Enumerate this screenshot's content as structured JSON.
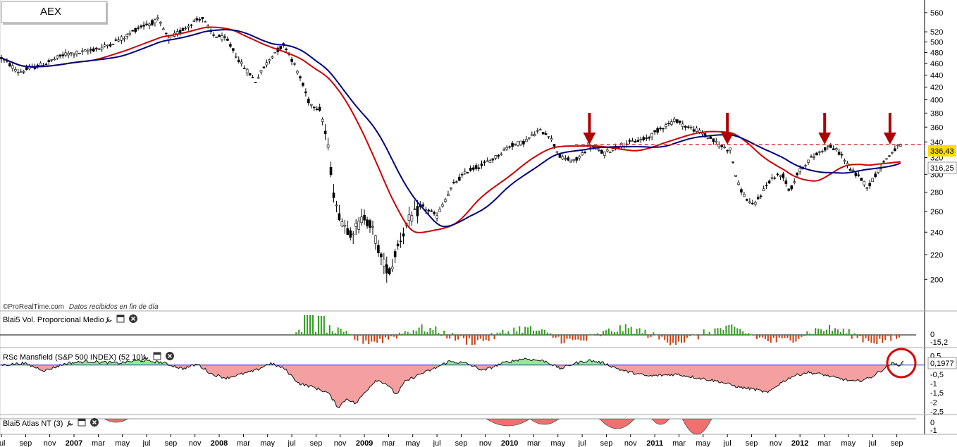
{
  "title": "AEX",
  "attribution": {
    "brand": "©ProRealTime.com",
    "note": "Datos recibidos en fin de día"
  },
  "chart_data": [
    {
      "type": "candlestick",
      "title": "AEX",
      "y_ticks": [
        200,
        220,
        240,
        260,
        280,
        300,
        320,
        340,
        360,
        380,
        400,
        420,
        440,
        460,
        480,
        500,
        520,
        560
      ],
      "ylim": [
        180,
        580
      ],
      "y_scale": "log",
      "x_labels": [
        "jul",
        "sep",
        "nov",
        "2007",
        "mar",
        "may",
        "jul",
        "sep",
        "nov",
        "2008",
        "mar",
        "may",
        "jul",
        "sep",
        "nov",
        "2009",
        "mar",
        "may",
        "jul",
        "sep",
        "nov",
        "2010",
        "mar",
        "may",
        "jul",
        "sep",
        "nov",
        "2011",
        "mar",
        "may",
        "jul",
        "sep",
        "nov",
        "2012",
        "mar",
        "may",
        "jul",
        "sep"
      ],
      "x_labels_bold": [
        "2007",
        "2008",
        "2009",
        "2010",
        "2011",
        "2012"
      ],
      "price_anchors": [
        [
          2006.5,
          470
        ],
        [
          2006.62,
          445
        ],
        [
          2006.8,
          460
        ],
        [
          2006.95,
          478
        ],
        [
          2007.05,
          480
        ],
        [
          2007.2,
          490
        ],
        [
          2007.35,
          510
        ],
        [
          2007.45,
          530
        ],
        [
          2007.55,
          540
        ],
        [
          2007.58,
          545
        ],
        [
          2007.65,
          505
        ],
        [
          2007.75,
          525
        ],
        [
          2007.82,
          540
        ],
        [
          2007.88,
          550
        ],
        [
          2007.95,
          515
        ],
        [
          2008.05,
          505
        ],
        [
          2008.15,
          460
        ],
        [
          2008.25,
          430
        ],
        [
          2008.3,
          450
        ],
        [
          2008.38,
          480
        ],
        [
          2008.45,
          495
        ],
        [
          2008.55,
          440
        ],
        [
          2008.62,
          395
        ],
        [
          2008.7,
          385
        ],
        [
          2008.75,
          330
        ],
        [
          2008.8,
          265
        ],
        [
          2008.85,
          250
        ],
        [
          2008.9,
          240
        ],
        [
          2008.95,
          245
        ],
        [
          2009.0,
          255
        ],
        [
          2009.05,
          245
        ],
        [
          2009.12,
          215
        ],
        [
          2009.18,
          205
        ],
        [
          2009.22,
          225
        ],
        [
          2009.3,
          250
        ],
        [
          2009.4,
          265
        ],
        [
          2009.5,
          255
        ],
        [
          2009.55,
          270
        ],
        [
          2009.62,
          290
        ],
        [
          2009.72,
          305
        ],
        [
          2009.8,
          310
        ],
        [
          2009.9,
          320
        ],
        [
          2010.0,
          335
        ],
        [
          2010.1,
          340
        ],
        [
          2010.2,
          355
        ],
        [
          2010.27,
          350
        ],
        [
          2010.35,
          320
        ],
        [
          2010.45,
          315
        ],
        [
          2010.55,
          335
        ],
        [
          2010.65,
          325
        ],
        [
          2010.75,
          335
        ],
        [
          2010.85,
          340
        ],
        [
          2010.95,
          345
        ],
        [
          2011.05,
          360
        ],
        [
          2011.15,
          370
        ],
        [
          2011.22,
          360
        ],
        [
          2011.3,
          355
        ],
        [
          2011.38,
          345
        ],
        [
          2011.45,
          335
        ],
        [
          2011.52,
          330
        ],
        [
          2011.57,
          290
        ],
        [
          2011.62,
          275
        ],
        [
          2011.68,
          265
        ],
        [
          2011.72,
          275
        ],
        [
          2011.8,
          295
        ],
        [
          2011.88,
          300
        ],
        [
          2011.93,
          280
        ],
        [
          2011.98,
          300
        ],
        [
          2012.05,
          315
        ],
        [
          2012.12,
          325
        ],
        [
          2012.2,
          335
        ],
        [
          2012.28,
          325
        ],
        [
          2012.35,
          305
        ],
        [
          2012.42,
          295
        ],
        [
          2012.47,
          285
        ],
        [
          2012.52,
          300
        ],
        [
          2012.58,
          315
        ],
        [
          2012.65,
          330
        ],
        [
          2012.7,
          336.43
        ]
      ],
      "price_label": 336.43,
      "price_label_text": "336,43",
      "red_ma_label": 316.25,
      "red_ma_label_text": "316,25",
      "resistance_level": 336.43,
      "resistance_start": 2010.45,
      "arrow_dates": [
        2010.55,
        2011.5,
        2012.17,
        2012.62
      ]
    },
    {
      "type": "bar",
      "title": "Blai5 Vol. Proporcional Medio",
      "y_ticks": [
        "0",
        "-15,2"
      ],
      "start_date": 2008.53,
      "last_value_text": "-15,2"
    },
    {
      "type": "area",
      "title": "RSc Mansfield (S&P 500 INDEX) (52 10)",
      "y_ticks": [
        "0,5",
        "0",
        "-0,5",
        "-1",
        "-1,5",
        "-2",
        "-2,5"
      ],
      "ylim": [
        -2.6,
        0.6
      ],
      "last_value": 0.1977,
      "last_value_text": "0,1977",
      "series_anchors": [
        [
          2006.5,
          0.0
        ],
        [
          2006.65,
          0.1
        ],
        [
          2006.8,
          -0.3
        ],
        [
          2006.95,
          0.1
        ],
        [
          2007.1,
          0.2
        ],
        [
          2007.3,
          0.1
        ],
        [
          2007.45,
          0.25
        ],
        [
          2007.6,
          0.15
        ],
        [
          2007.75,
          -0.2
        ],
        [
          2007.85,
          0.05
        ],
        [
          2007.95,
          -0.5
        ],
        [
          2008.05,
          -0.7
        ],
        [
          2008.15,
          -0.5
        ],
        [
          2008.25,
          -0.3
        ],
        [
          2008.35,
          0.1
        ],
        [
          2008.45,
          -0.2
        ],
        [
          2008.55,
          -1.0
        ],
        [
          2008.65,
          -1.2
        ],
        [
          2008.75,
          -1.5
        ],
        [
          2008.82,
          -2.3
        ],
        [
          2008.88,
          -1.8
        ],
        [
          2008.94,
          -2.1
        ],
        [
          2009.0,
          -1.5
        ],
        [
          2009.08,
          -0.8
        ],
        [
          2009.15,
          -1.0
        ],
        [
          2009.22,
          -1.6
        ],
        [
          2009.28,
          -0.9
        ],
        [
          2009.38,
          -0.5
        ],
        [
          2009.48,
          -0.2
        ],
        [
          2009.58,
          0.2
        ],
        [
          2009.7,
          0.1
        ],
        [
          2009.82,
          -0.3
        ],
        [
          2009.95,
          0.1
        ],
        [
          2010.1,
          0.35
        ],
        [
          2010.25,
          0.2
        ],
        [
          2010.35,
          -0.2
        ],
        [
          2010.45,
          0.1
        ],
        [
          2010.55,
          0.25
        ],
        [
          2010.65,
          0.1
        ],
        [
          2010.78,
          -0.3
        ],
        [
          2010.95,
          -0.6
        ],
        [
          2011.15,
          -0.5
        ],
        [
          2011.3,
          -0.7
        ],
        [
          2011.45,
          -0.9
        ],
        [
          2011.58,
          -1.2
        ],
        [
          2011.68,
          -1.3
        ],
        [
          2011.78,
          -1.5
        ],
        [
          2011.86,
          -1.0
        ],
        [
          2011.95,
          -0.6
        ],
        [
          2012.05,
          -0.4
        ],
        [
          2012.15,
          -0.5
        ],
        [
          2012.25,
          -0.7
        ],
        [
          2012.38,
          -0.9
        ],
        [
          2012.48,
          -0.7
        ],
        [
          2012.58,
          -0.2
        ],
        [
          2012.63,
          0.1
        ],
        [
          2012.68,
          0.0
        ],
        [
          2012.72,
          0.1977
        ]
      ]
    },
    {
      "type": "area",
      "title": "Blai5 Atlas NT (3)",
      "y_ticks": [
        "0",
        "-1"
      ]
    }
  ],
  "colors": {
    "candle": "#000000",
    "ma_red": "#cc0000",
    "ma_blue": "#000080",
    "resistance": "#e03030",
    "arrow": "#b00000",
    "price_box": "#ffdd00",
    "vol_pos": "#2e9e1e",
    "vol_neg": "#d04010",
    "rsc_pos": "#90ee90",
    "rsc_neg": "#f5a0a0",
    "atlas_fill": "#f07070",
    "circle": "#dd0000"
  },
  "icons": [
    "wrench-icon",
    "window-icon",
    "close-icon"
  ]
}
